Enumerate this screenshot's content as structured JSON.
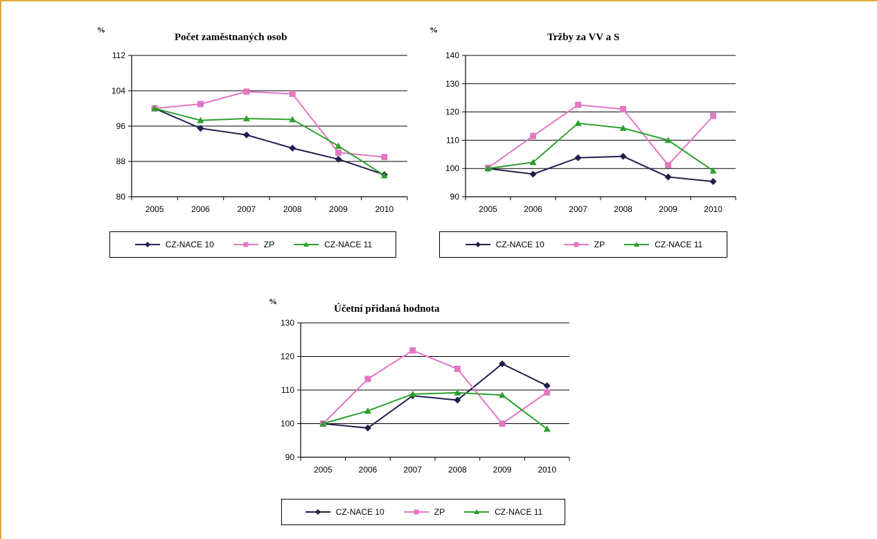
{
  "chart_data": [
    {
      "type": "line",
      "title": "Počet zaměstnaných osob",
      "ylabel": "%",
      "categories": [
        "2005",
        "2006",
        "2007",
        "2008",
        "2009",
        "2010"
      ],
      "ylim": [
        80,
        112
      ],
      "yticks": [
        "80",
        "88",
        "96",
        "104",
        "112"
      ],
      "grid": true,
      "legend": "bottom",
      "series": [
        {
          "name": "CZ-NACE 10",
          "values": [
            100,
            95.5,
            94,
            91,
            88.5,
            85
          ],
          "color": "#1f1f4d",
          "marker": "diamond"
        },
        {
          "name": "ZP",
          "values": [
            100,
            101,
            103.8,
            103.3,
            90,
            89
          ],
          "color": "#e377c2",
          "marker": "square"
        },
        {
          "name": "CZ-NACE 11",
          "values": [
            100,
            97.3,
            97.7,
            97.5,
            91.5,
            84.8
          ],
          "color": "#2ca02c",
          "marker": "triangle"
        }
      ]
    },
    {
      "type": "line",
      "title": "Tržby za VV a S",
      "ylabel": "%",
      "categories": [
        "2005",
        "2006",
        "2007",
        "2008",
        "2009",
        "2010"
      ],
      "ylim": [
        90,
        140
      ],
      "yticks": [
        "90",
        "100",
        "110",
        "120",
        "130",
        "140"
      ],
      "grid": true,
      "legend": "bottom",
      "series": [
        {
          "name": "CZ-NACE 10",
          "values": [
            100,
            98,
            103.8,
            104.3,
            97,
            95.4
          ],
          "color": "#1f1f4d",
          "marker": "diamond"
        },
        {
          "name": "ZP",
          "values": [
            100.2,
            111.5,
            122.5,
            121,
            101.2,
            118.6
          ],
          "color": "#e377c2",
          "marker": "square"
        },
        {
          "name": "CZ-NACE 11",
          "values": [
            100,
            102.2,
            116,
            114.3,
            110,
            99.2
          ],
          "color": "#2ca02c",
          "marker": "triangle"
        }
      ]
    },
    {
      "type": "line",
      "title": "Účetní přidaná hodnota",
      "ylabel": "%",
      "categories": [
        "2005",
        "2006",
        "2007",
        "2008",
        "2009",
        "2010"
      ],
      "ylim": [
        90,
        130
      ],
      "yticks": [
        "90",
        "100",
        "110",
        "120",
        "130"
      ],
      "grid": true,
      "legend": "bottom",
      "series": [
        {
          "name": "CZ-NACE 10",
          "values": [
            100,
            98.7,
            108.3,
            107,
            117.8,
            111.3
          ],
          "color": "#1f1f4d",
          "marker": "diamond"
        },
        {
          "name": "ZP",
          "values": [
            100,
            113.3,
            121.8,
            116.3,
            100,
            109.3
          ],
          "color": "#e377c2",
          "marker": "square"
        },
        {
          "name": "CZ-NACE 11",
          "values": [
            100,
            103.8,
            108.8,
            109.2,
            108.5,
            98.4
          ],
          "color": "#2ca02c",
          "marker": "triangle"
        }
      ]
    }
  ]
}
